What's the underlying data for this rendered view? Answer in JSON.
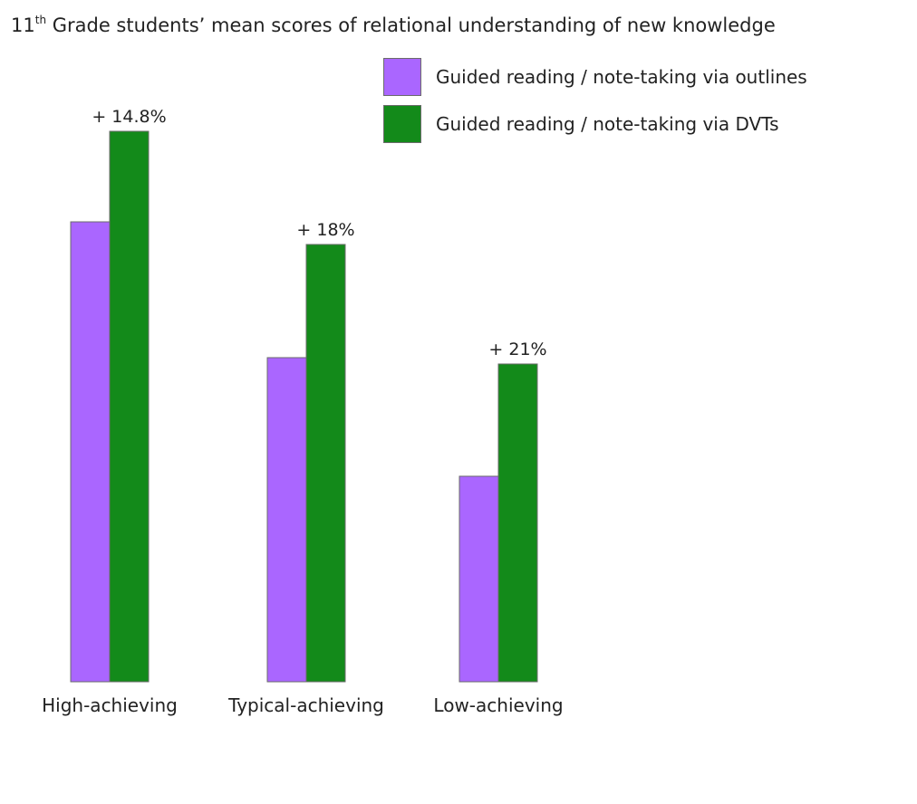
{
  "chart_data": {
    "type": "bar",
    "title_prefix": "11",
    "title_sup": "th",
    "title_rest": " Grade students’ mean scores of relational understanding of new knowledge",
    "categories": [
      "High-achieving",
      "Typical-achieving",
      "Low-achieving"
    ],
    "series": [
      {
        "name": "Guided reading / note-taking via outlines",
        "color": "#aa66ff",
        "values": [
          508,
          358,
          227
        ]
      },
      {
        "name": "Guided reading / note-taking via DVTs",
        "color": "#138a1a",
        "values": [
          608,
          483,
          351
        ]
      }
    ],
    "annotations": [
      "+ 14.8%",
      "+ 18%",
      "+ 21%"
    ],
    "ylim": [
      0,
      620
    ],
    "xlabel": "",
    "ylabel": "",
    "grid": false,
    "axes_visible": false,
    "legend_position": "top-right"
  }
}
